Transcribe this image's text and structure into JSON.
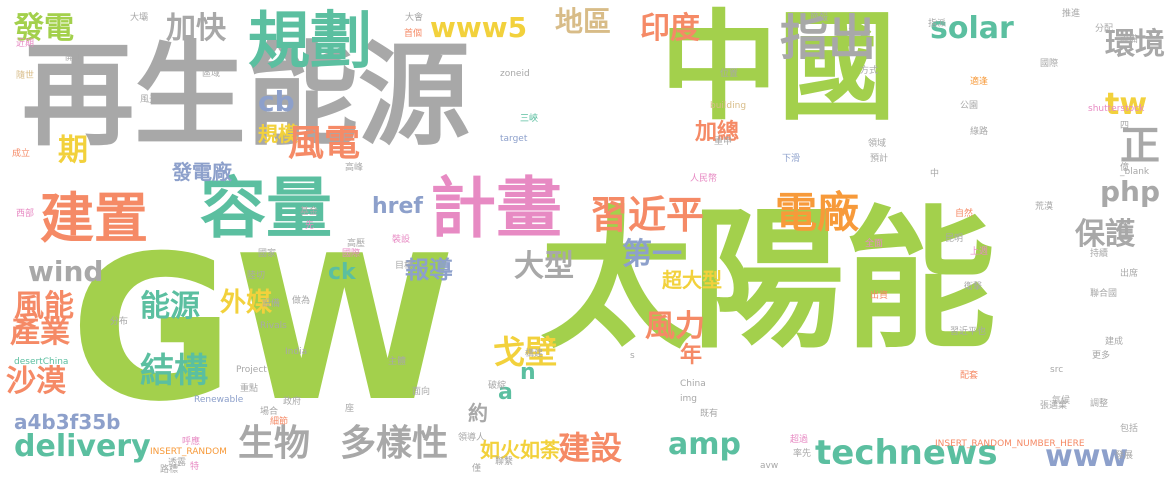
{
  "title": "",
  "colors": {
    "green": "#a3d04c",
    "gray": "#a8a8a8",
    "teal": "#5bbfa0",
    "salmon": "#f58a66",
    "pink": "#e78ac3",
    "yellow": "#f2d13c",
    "tan": "#d8bc88",
    "blue": "#8da0cb",
    "orange": "#f79a3a"
  },
  "words": [
    {
      "text": "中國",
      "color": "green"
    },
    {
      "text": "再生能源",
      "color": "gray"
    },
    {
      "text": "GW",
      "color": "green"
    },
    {
      "text": "太陽能",
      "color": "green"
    },
    {
      "text": "規劃",
      "color": "teal"
    },
    {
      "text": "容量",
      "color": "teal"
    },
    {
      "text": "計畫",
      "color": "pink"
    },
    {
      "text": "建置",
      "color": "salmon"
    },
    {
      "text": "發電",
      "color": "green"
    },
    {
      "text": "加快",
      "color": "gray"
    },
    {
      "text": "www5",
      "color": "yellow"
    },
    {
      "text": "地區",
      "color": "tan"
    },
    {
      "text": "印度",
      "color": "salmon"
    },
    {
      "text": "指出",
      "color": "gray"
    },
    {
      "text": "solar",
      "color": "teal"
    },
    {
      "text": "環境",
      "color": "gray"
    },
    {
      "text": "tw",
      "color": "yellow"
    },
    {
      "text": "正",
      "color": "gray"
    },
    {
      "text": "習近平",
      "color": "salmon"
    },
    {
      "text": "電廠",
      "color": "orange"
    },
    {
      "text": "php",
      "color": "gray"
    },
    {
      "text": "保護",
      "color": "gray"
    },
    {
      "text": "cb",
      "color": "blue"
    },
    {
      "text": "規模",
      "color": "yellow"
    },
    {
      "text": "風電",
      "color": "salmon"
    },
    {
      "text": "加總",
      "color": "salmon"
    },
    {
      "text": "發電廠",
      "color": "blue"
    },
    {
      "text": "期",
      "color": "yellow"
    },
    {
      "text": "wind",
      "color": "gray"
    },
    {
      "text": "風能",
      "color": "salmon"
    },
    {
      "text": "產業",
      "color": "salmon"
    },
    {
      "text": "能源",
      "color": "teal"
    },
    {
      "text": "外媒",
      "color": "yellow"
    },
    {
      "text": "href",
      "color": "blue"
    },
    {
      "text": "ck",
      "color": "teal"
    },
    {
      "text": "報導",
      "color": "blue"
    },
    {
      "text": "大型",
      "color": "gray"
    },
    {
      "text": "第一",
      "color": "blue"
    },
    {
      "text": "超大型",
      "color": "yellow"
    },
    {
      "text": "風力",
      "color": "salmon"
    },
    {
      "text": "年",
      "color": "salmon"
    },
    {
      "text": "戈壁",
      "color": "yellow"
    },
    {
      "text": "結構",
      "color": "teal"
    },
    {
      "text": "沙漠",
      "color": "salmon"
    },
    {
      "text": "a4b3f35b",
      "color": "blue"
    },
    {
      "text": "delivery",
      "color": "teal"
    },
    {
      "text": "生物",
      "color": "gray"
    },
    {
      "text": "多樣性",
      "color": "gray"
    },
    {
      "text": "如火如荼",
      "color": "yellow"
    },
    {
      "text": "建設",
      "color": "salmon"
    },
    {
      "text": "amp",
      "color": "teal"
    },
    {
      "text": "technews",
      "color": "teal"
    },
    {
      "text": "www",
      "color": "blue"
    },
    {
      "text": "n",
      "color": "teal"
    },
    {
      "text": "a",
      "color": "teal"
    },
    {
      "text": "約",
      "color": "gray"
    }
  ],
  "small_words": [
    {
      "text": "大壩",
      "color": "gray"
    },
    {
      "text": "近期",
      "color": "pink"
    },
    {
      "text": "開工",
      "color": "gray"
    },
    {
      "text": "國際",
      "color": "gray"
    },
    {
      "text": "隨世",
      "color": "tan"
    },
    {
      "text": "風光",
      "color": "gray"
    },
    {
      "text": "成立",
      "color": "salmon"
    },
    {
      "text": "高峰",
      "color": "gray"
    },
    {
      "text": "西部",
      "color": "pink"
    },
    {
      "text": "國家",
      "color": "gray"
    },
    {
      "text": "基金",
      "color": "gray"
    },
    {
      "text": "先",
      "color": "pink"
    },
    {
      "text": "高壓",
      "color": "gray"
    },
    {
      "text": "裝設",
      "color": "pink"
    },
    {
      "text": "大會",
      "color": "gray"
    },
    {
      "text": "首個",
      "color": "salmon"
    },
    {
      "text": "zoneid",
      "color": "gray"
    },
    {
      "text": "三峽",
      "color": "teal"
    },
    {
      "text": "target",
      "color": "blue"
    },
    {
      "text": "building",
      "color": "tan"
    },
    {
      "text": "位置",
      "color": "gray"
    },
    {
      "text": "重申",
      "color": "gray"
    },
    {
      "text": "下滑",
      "color": "blue"
    },
    {
      "text": "人民幣",
      "color": "pink"
    },
    {
      "text": "推進",
      "color": "gray"
    },
    {
      "text": "分配",
      "color": "gray"
    },
    {
      "text": "設備",
      "color": "gray"
    },
    {
      "text": "方式",
      "color": "gray"
    },
    {
      "text": "適逢",
      "color": "orange"
    },
    {
      "text": "shutterstock",
      "color": "pink"
    },
    {
      "text": "公園",
      "color": "gray"
    },
    {
      "text": "領域",
      "color": "gray"
    },
    {
      "text": "預計",
      "color": "gray"
    },
    {
      "text": "綠路",
      "color": "gray"
    },
    {
      "text": "_blank",
      "color": "gray"
    },
    {
      "text": "自然",
      "color": "salmon"
    },
    {
      "text": "荒漠",
      "color": "gray"
    },
    {
      "text": "昆明",
      "color": "gray"
    },
    {
      "text": "全面",
      "color": "pink"
    },
    {
      "text": "上週",
      "color": "pink"
    },
    {
      "text": "持續",
      "color": "gray"
    },
    {
      "text": "衛擊",
      "color": "gray"
    },
    {
      "text": "出席",
      "color": "gray"
    },
    {
      "text": "聯合國",
      "color": "gray"
    },
    {
      "text": "出資",
      "color": "salmon"
    },
    {
      "text": "習近平也",
      "color": "gray"
    },
    {
      "text": "建成",
      "color": "gray"
    },
    {
      "text": "更多",
      "color": "gray"
    },
    {
      "text": "配套",
      "color": "salmon"
    },
    {
      "text": "src",
      "color": "gray"
    },
    {
      "text": "張邁業",
      "color": "gray"
    },
    {
      "text": "調整",
      "color": "gray"
    },
    {
      "text": "INSERT_RANDOM_NUMBER_HERE",
      "color": "salmon"
    },
    {
      "text": "包括",
      "color": "gray"
    },
    {
      "text": "發展",
      "color": "gray"
    },
    {
      "text": "率先",
      "color": "gray"
    },
    {
      "text": "avw",
      "color": "gray"
    },
    {
      "text": "超過",
      "color": "pink"
    },
    {
      "text": "僅",
      "color": "gray"
    },
    {
      "text": "聯繫",
      "color": "gray"
    },
    {
      "text": "領導人",
      "color": "gray"
    },
    {
      "text": "China",
      "color": "gray"
    },
    {
      "text": "img",
      "color": "gray"
    },
    {
      "text": "既有",
      "color": "gray"
    },
    {
      "text": "Rivals",
      "color": "gray"
    },
    {
      "text": "India",
      "color": "gray"
    },
    {
      "text": "Project",
      "color": "gray"
    },
    {
      "text": "Renewable",
      "color": "blue"
    },
    {
      "text": "desertChina",
      "color": "teal"
    },
    {
      "text": "INSERT_RANDOM",
      "color": "orange"
    },
    {
      "text": "分布",
      "color": "gray"
    },
    {
      "text": "呼應",
      "color": "pink"
    },
    {
      "text": "路標",
      "color": "gray"
    },
    {
      "text": "透露",
      "color": "gray"
    },
    {
      "text": "特",
      "color": "pink"
    },
    {
      "text": "場合",
      "color": "gray"
    },
    {
      "text": "細節",
      "color": "salmon"
    },
    {
      "text": "政府",
      "color": "gray"
    },
    {
      "text": "座",
      "color": "gray"
    },
    {
      "text": "面向",
      "color": "gray"
    },
    {
      "text": "破綻",
      "color": "gray"
    },
    {
      "text": "構建",
      "color": "gray"
    },
    {
      "text": "主體",
      "color": "gray"
    },
    {
      "text": "重點",
      "color": "gray"
    },
    {
      "text": "做為",
      "color": "gray"
    },
    {
      "text": "設備",
      "color": "gray"
    },
    {
      "text": "陸切",
      "color": "gray"
    },
    {
      "text": "國際",
      "color": "pink"
    },
    {
      "text": "目標",
      "color": "gray"
    },
    {
      "text": "氣候",
      "color": "gray"
    },
    {
      "text": "億",
      "color": "gray"
    },
    {
      "text": "四",
      "color": "gray"
    },
    {
      "text": "中",
      "color": "gray"
    },
    {
      "text": "s",
      "color": "gray"
    },
    {
      "text": "區域",
      "color": "gray"
    },
    {
      "text": "指派",
      "color": "gray"
    },
    {
      "text": "簡報",
      "color": "gray"
    },
    {
      "text": "圖裝",
      "color": "gray"
    },
    {
      "text": "佰",
      "color": "gray"
    },
    {
      "text": "發",
      "color": "gray"
    }
  ]
}
